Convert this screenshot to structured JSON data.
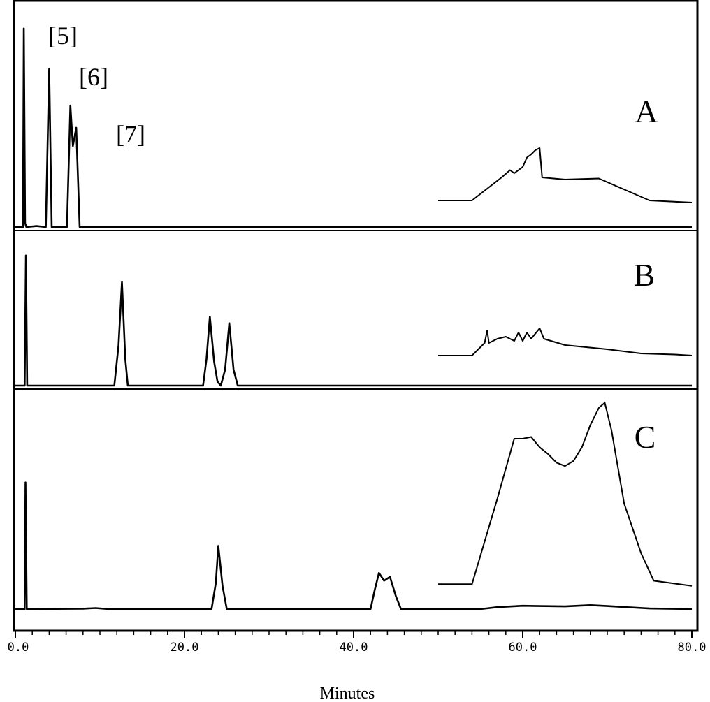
{
  "chart_data": {
    "type": "line",
    "title": "",
    "xlabel": "Minutes",
    "ylabel": "",
    "xlim": [
      0,
      80
    ],
    "x_ticks": [
      0,
      20,
      40,
      60,
      80
    ],
    "x_tick_labels": [
      "0.0",
      "20.0",
      "40.0",
      "60.0",
      "80.0"
    ],
    "grid": false,
    "panel_divider_color": "#000000",
    "panels": [
      {
        "label": "A",
        "peak_labels": [
          "[5]",
          "[6]",
          "[7]"
        ],
        "series": [
          {
            "points": [
              [
                0,
                0
              ],
              [
                0.9,
                0
              ],
              [
                1.0,
                98
              ],
              [
                1.15,
                2
              ],
              [
                1.3,
                0
              ],
              [
                2.5,
                0.5
              ],
              [
                3.6,
                0
              ],
              [
                4.0,
                78
              ],
              [
                4.3,
                0
              ],
              [
                5.6,
                0
              ],
              [
                6.1,
                0
              ],
              [
                6.5,
                60
              ],
              [
                6.8,
                40
              ],
              [
                7.2,
                49
              ],
              [
                7.6,
                0
              ],
              [
                80,
                0
              ]
            ]
          },
          {
            "points": [
              [
                50,
                12
              ],
              [
                54,
                12
              ],
              [
                57.5,
                23
              ],
              [
                58.5,
                26.5
              ],
              [
                59,
                25
              ],
              [
                60,
                28
              ],
              [
                60.5,
                32.5
              ],
              [
                61,
                34
              ],
              [
                61.5,
                36
              ],
              [
                62,
                37
              ],
              [
                62.3,
                23
              ],
              [
                65,
                22
              ],
              [
                69,
                22.5
              ],
              [
                75,
                12
              ],
              [
                80,
                11
              ]
            ]
          }
        ]
      },
      {
        "label": "B",
        "series": [
          {
            "points": [
              [
                0,
                0
              ],
              [
                1.1,
                0
              ],
              [
                1.25,
                98
              ],
              [
                1.4,
                0
              ],
              [
                11.7,
                0
              ],
              [
                12.2,
                30
              ],
              [
                12.6,
                78
              ],
              [
                13.0,
                20
              ],
              [
                13.3,
                0
              ],
              [
                22.2,
                0
              ],
              [
                22.6,
                20
              ],
              [
                23.0,
                52
              ],
              [
                23.5,
                18
              ],
              [
                23.9,
                3
              ],
              [
                24.3,
                0
              ],
              [
                24.8,
                12
              ],
              [
                25.3,
                47
              ],
              [
                25.8,
                12
              ],
              [
                26.3,
                0
              ],
              [
                80,
                0
              ]
            ]
          },
          {
            "points": [
              [
                50,
                12
              ],
              [
                54,
                12
              ],
              [
                55.5,
                18
              ],
              [
                55.8,
                24
              ],
              [
                56,
                18
              ],
              [
                57,
                20
              ],
              [
                58,
                21
              ],
              [
                59,
                19
              ],
              [
                59.5,
                23
              ],
              [
                60,
                19
              ],
              [
                60.5,
                23
              ],
              [
                61,
                20
              ],
              [
                62,
                25
              ],
              [
                62.5,
                20
              ],
              [
                65,
                17
              ],
              [
                70,
                15
              ],
              [
                74,
                13
              ],
              [
                78,
                12.5
              ],
              [
                80,
                12
              ]
            ]
          }
        ]
      },
      {
        "label": "C",
        "series": [
          {
            "points": [
              [
                0,
                0
              ],
              [
                1.1,
                0
              ],
              [
                1.2,
                98
              ],
              [
                1.35,
                0
              ],
              [
                8,
                0.3
              ],
              [
                9.5,
                0.8
              ],
              [
                11,
                0
              ],
              [
                23.2,
                0
              ],
              [
                23.7,
                20
              ],
              [
                24.0,
                49
              ],
              [
                24.5,
                18
              ],
              [
                25.0,
                0
              ],
              [
                42.0,
                0
              ],
              [
                42.5,
                15
              ],
              [
                43.0,
                28
              ],
              [
                43.6,
                22
              ],
              [
                44.3,
                25
              ],
              [
                45.0,
                10
              ],
              [
                45.6,
                0
              ],
              [
                55,
                0
              ],
              [
                57,
                1.5
              ],
              [
                60,
                2.6
              ],
              [
                65,
                2.1
              ],
              [
                68,
                3.1
              ],
              [
                70,
                2.4
              ],
              [
                75,
                0.5
              ],
              [
                80,
                0
              ]
            ]
          },
          {
            "points": [
              [
                50,
                15
              ],
              [
                54,
                15
              ],
              [
                57,
                65
              ],
              [
                59,
                100
              ],
              [
                60,
                100
              ],
              [
                61,
                101
              ],
              [
                62,
                95
              ],
              [
                63,
                91
              ],
              [
                64,
                86
              ],
              [
                65,
                84
              ],
              [
                66,
                87
              ],
              [
                67,
                95
              ],
              [
                68,
                108
              ],
              [
                69,
                118
              ],
              [
                69.7,
                121
              ],
              [
                70.5,
                105
              ],
              [
                72,
                62
              ],
              [
                74,
                33
              ],
              [
                75.5,
                17
              ],
              [
                80,
                14
              ]
            ]
          }
        ]
      }
    ]
  }
}
